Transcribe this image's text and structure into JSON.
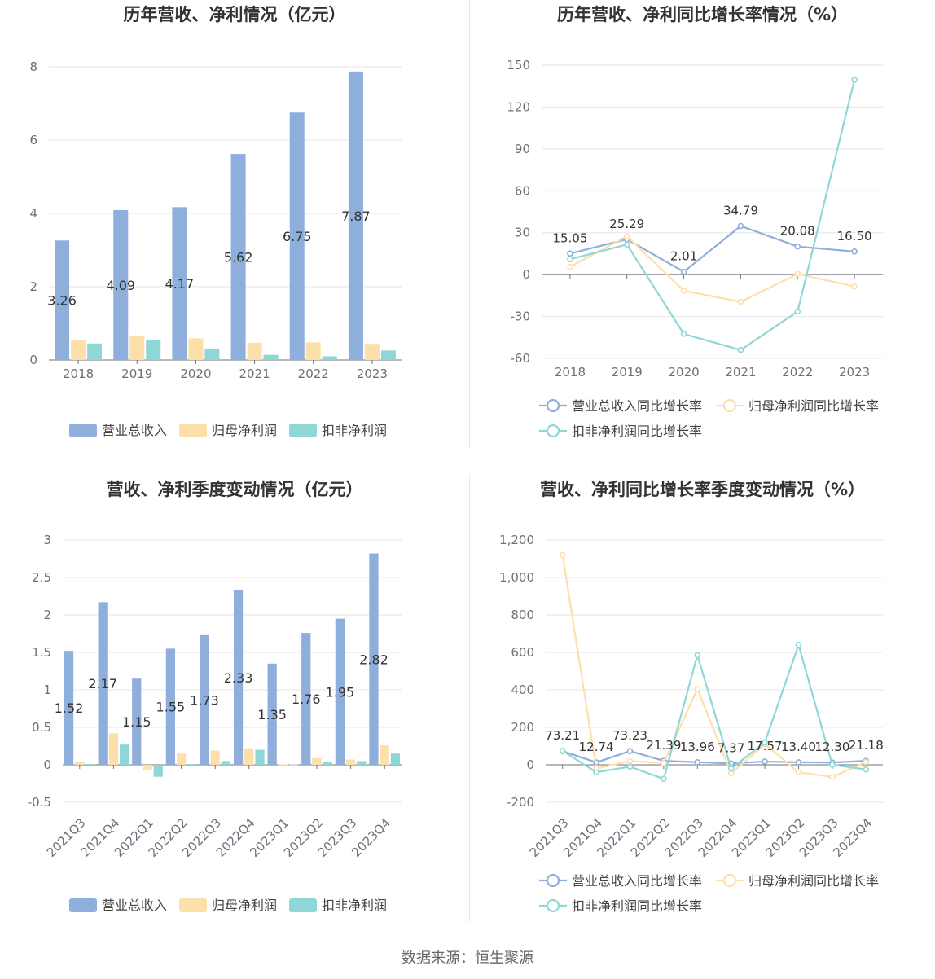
{
  "source_note": "数据来源：恒生聚源",
  "colors": {
    "revenue": "#8eaedc",
    "net_profit": "#fde0a9",
    "deducted_profit": "#8fd7d6",
    "grid": "#e6e6e6",
    "axis": "#6e7079"
  },
  "chart_data": [
    {
      "id": "annual_values",
      "type": "bar",
      "title": "历年营收、净利情况（亿元）",
      "categories": [
        "2018",
        "2019",
        "2020",
        "2021",
        "2022",
        "2023"
      ],
      "ylim": [
        0,
        8
      ],
      "yticks": [
        0,
        2,
        4,
        6,
        8
      ],
      "ytick_labels": [
        "0",
        "2",
        "4",
        "6",
        "8"
      ],
      "grid": true,
      "legend_position": "bottom",
      "series": [
        {
          "name": "营业总收入",
          "values": [
            3.26,
            4.09,
            4.17,
            5.62,
            6.75,
            7.87
          ],
          "labeled": true
        },
        {
          "name": "归母净利润",
          "values": [
            0.53,
            0.67,
            0.59,
            0.47,
            0.48,
            0.44
          ]
        },
        {
          "name": "扣非净利润",
          "values": [
            0.45,
            0.54,
            0.31,
            0.14,
            0.1,
            0.26
          ]
        }
      ],
      "data_labels": [
        "3.26",
        "4.09",
        "4.17",
        "5.62",
        "6.75",
        "7.87"
      ]
    },
    {
      "id": "annual_growth",
      "type": "line",
      "title": "历年营收、净利同比增长率情况（%）",
      "categories": [
        "2018",
        "2019",
        "2020",
        "2021",
        "2022",
        "2023"
      ],
      "ylim": [
        -60,
        150
      ],
      "yticks": [
        -60,
        -30,
        0,
        30,
        60,
        90,
        120,
        150
      ],
      "ytick_labels": [
        "-60",
        "-30",
        "0",
        "30",
        "60",
        "90",
        "120",
        "150"
      ],
      "grid": true,
      "legend_position": "bottom",
      "series": [
        {
          "name": "营业总收入同比增长率",
          "values": [
            15.05,
            25.29,
            2.01,
            34.79,
            20.08,
            16.5
          ],
          "labeled": true
        },
        {
          "name": "归母净利润同比增长率",
          "values": [
            5.5,
            27.5,
            -11.5,
            -19.5,
            0.5,
            -8.5
          ]
        },
        {
          "name": "扣非净利润同比增长率",
          "values": [
            11.0,
            21.5,
            -42.5,
            -54.0,
            -26.5,
            139.5
          ]
        }
      ],
      "data_labels": [
        "15.05",
        "25.29",
        "2.01",
        "34.79",
        "20.08",
        "16.50"
      ]
    },
    {
      "id": "quarterly_values",
      "type": "bar",
      "title": "营收、净利季度变动情况（亿元）",
      "categories": [
        "2021Q3",
        "2021Q4",
        "2022Q1",
        "2022Q2",
        "2022Q3",
        "2022Q4",
        "2023Q1",
        "2023Q2",
        "2023Q3",
        "2023Q4"
      ],
      "ylim": [
        -0.5,
        3
      ],
      "yticks": [
        -0.5,
        0,
        0.5,
        1,
        1.5,
        2,
        2.5,
        3
      ],
      "ytick_labels": [
        "-0.5",
        "0",
        "0.5",
        "1",
        "1.5",
        "2",
        "2.5",
        "3"
      ],
      "grid": true,
      "legend_position": "bottom",
      "series": [
        {
          "name": "营业总收入",
          "values": [
            1.52,
            2.17,
            1.15,
            1.55,
            1.73,
            2.33,
            1.35,
            1.76,
            1.95,
            2.82
          ],
          "labeled": true
        },
        {
          "name": "归母净利润",
          "values": [
            0.04,
            0.42,
            -0.07,
            0.15,
            0.19,
            0.22,
            0.005,
            0.09,
            0.07,
            0.26
          ]
        },
        {
          "name": "扣非净利润",
          "values": [
            0.01,
            0.27,
            -0.16,
            0.01,
            0.05,
            0.2,
            0.005,
            0.04,
            0.05,
            0.15
          ]
        }
      ],
      "data_labels": [
        "1.52",
        "2.17",
        "1.15",
        "1.55",
        "1.73",
        "2.33",
        "1.35",
        "1.76",
        "1.95",
        "2.82"
      ]
    },
    {
      "id": "quarterly_growth",
      "type": "line",
      "title": "营收、净利同比增长率季度变动情况（%）",
      "categories": [
        "2021Q3",
        "2021Q4",
        "2022Q1",
        "2022Q2",
        "2022Q3",
        "2022Q4",
        "2023Q1",
        "2023Q2",
        "2023Q3",
        "2023Q4"
      ],
      "ylim": [
        -200,
        1200
      ],
      "yticks": [
        -200,
        0,
        200,
        400,
        600,
        800,
        1000,
        1200
      ],
      "ytick_labels": [
        "-200",
        "0",
        "200",
        "400",
        "600",
        "800",
        "1,000",
        "1,200"
      ],
      "grid": true,
      "legend_position": "bottom",
      "series": [
        {
          "name": "营业总收入同比增长率",
          "values": [
            73.21,
            12.74,
            73.23,
            21.39,
            13.96,
            7.37,
            17.57,
            13.4,
            12.3,
            21.18
          ],
          "labeled": true
        },
        {
          "name": "归母净利润同比增长率",
          "values": [
            1120,
            -20,
            20,
            10,
            405,
            -45,
            110,
            -40,
            -65,
            15
          ]
        },
        {
          "name": "扣非净利润同比增长率",
          "values": [
            75,
            -40,
            -10,
            -75,
            585,
            -20,
            120,
            640,
            0,
            -25
          ]
        }
      ],
      "data_labels": [
        "73.21",
        "12.74",
        "73.23",
        "21.39",
        "13.96",
        "7.37",
        "17.57",
        "13.40",
        "12.30",
        "21.18"
      ]
    }
  ]
}
